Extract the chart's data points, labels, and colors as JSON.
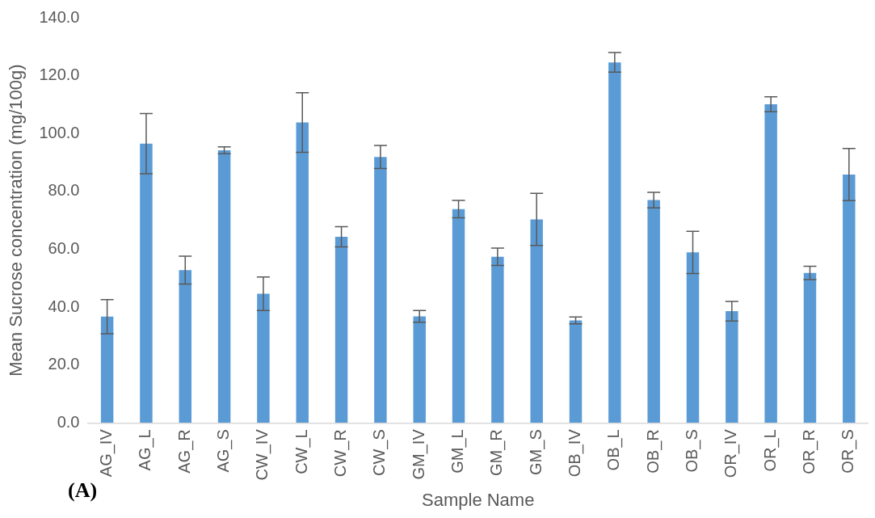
{
  "chart_data": {
    "type": "bar",
    "xlabel": "Sample Name",
    "ylabel": "Mean Sucrose concentration (mg/100g)",
    "categories": [
      "AG_IV",
      "AG_L",
      "AG_R",
      "AG_S",
      "CW_IV",
      "CW_L",
      "CW_R",
      "CW_S",
      "GM_IV",
      "GM_L",
      "GM_R",
      "GM_S",
      "OB_IV",
      "OB_L",
      "OB_R",
      "OB_S",
      "OR_IV",
      "OR_L",
      "OR_R",
      "OR_S"
    ],
    "values": [
      36.7,
      96.5,
      52.8,
      94.2,
      44.6,
      103.8,
      64.3,
      91.9,
      36.8,
      73.9,
      57.4,
      70.3,
      35.4,
      124.6,
      77.0,
      58.9,
      38.6,
      110.1,
      51.8,
      85.8
    ],
    "errors": [
      5.9,
      10.4,
      4.8,
      1.2,
      5.8,
      10.3,
      3.5,
      4.0,
      2.0,
      3.0,
      3.0,
      9.0,
      1.2,
      3.4,
      2.7,
      7.3,
      3.4,
      2.6,
      2.3,
      9.0
    ],
    "color": "#5b9bd5",
    "ylim": [
      0,
      140
    ],
    "yticks": [
      {
        "value": 0,
        "label": "0.0"
      },
      {
        "value": 20,
        "label": "20.0"
      },
      {
        "value": 40,
        "label": "40.0"
      },
      {
        "value": 60,
        "label": "60.0"
      },
      {
        "value": 80,
        "label": "80.0"
      },
      {
        "value": 100,
        "label": "100.0"
      },
      {
        "value": 120,
        "label": "120.0"
      },
      {
        "value": 140,
        "label": "140.0"
      }
    ],
    "grid": false,
    "legend": false,
    "annotations": [
      "(A)"
    ]
  }
}
